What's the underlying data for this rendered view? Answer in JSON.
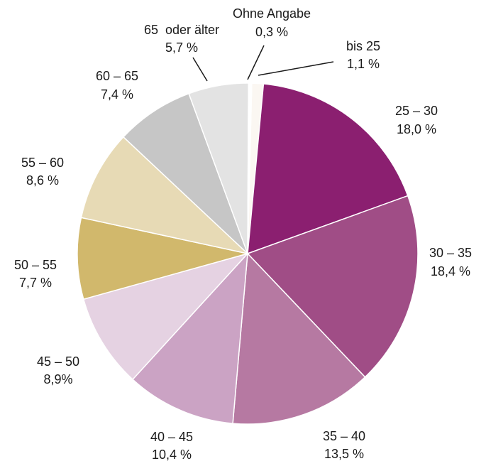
{
  "chart_data": {
    "type": "pie",
    "title": "",
    "start_category": "bis 25",
    "direction": "clockwise",
    "slices": [
      {
        "category": "bis 25",
        "value": 1.1,
        "value_label": "1,1 %",
        "color": "#fbf7f2"
      },
      {
        "category": "25 – 30",
        "value": 18.0,
        "value_label": "18,0 %",
        "color": "#8b1f70"
      },
      {
        "category": "30 – 35",
        "value": 18.4,
        "value_label": "18,4 %",
        "color": "#a04d86"
      },
      {
        "category": "35 – 40",
        "value": 13.5,
        "value_label": "13,5 %",
        "color": "#b679a2"
      },
      {
        "category": "40 – 45",
        "value": 10.4,
        "value_label": "10,4 %",
        "color": "#cba3c4"
      },
      {
        "category": "45 – 50",
        "value": 8.9,
        "value_label": "8,9%",
        "color": "#e5d2e2"
      },
      {
        "category": "50 – 55",
        "value": 7.7,
        "value_label": "7,7 %",
        "color": "#d1b86c"
      },
      {
        "category": "55 – 60",
        "value": 8.6,
        "value_label": "8,6 %",
        "color": "#e7dab5"
      },
      {
        "category": "60 – 65",
        "value": 7.4,
        "value_label": "7,4 %",
        "color": "#c6c6c6"
      },
      {
        "category": "65  oder älter",
        "value": 5.7,
        "value_label": "5,7 %",
        "color": "#e3e3e3"
      },
      {
        "category": "Ohne Angabe",
        "value": 0.3,
        "value_label": "0,3 %",
        "color": "#ffffff"
      }
    ]
  }
}
